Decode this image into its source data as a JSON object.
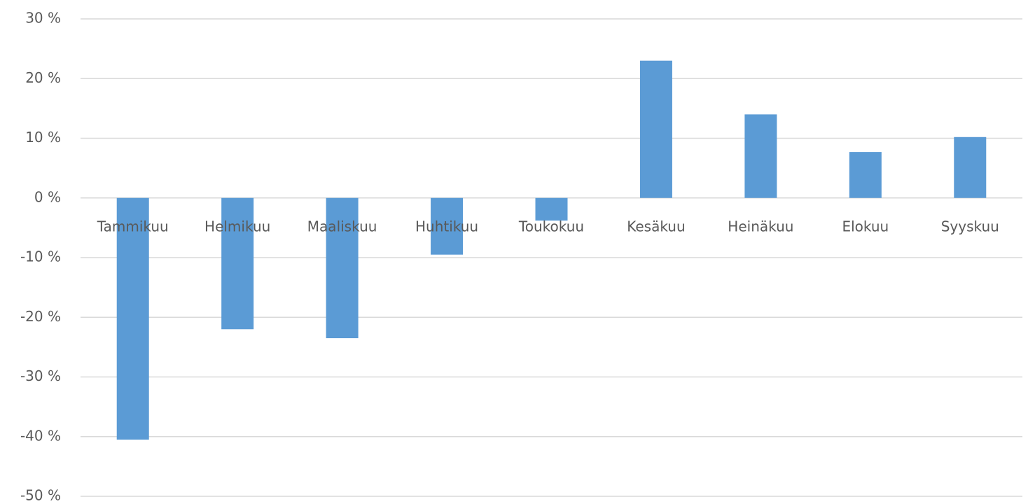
{
  "chart_data": {
    "type": "bar",
    "categories": [
      "Tammikuu",
      "Helmikuu",
      "Maaliskuu",
      "Huhtikuu",
      "Toukokuu",
      "Kesäkuu",
      "Heinäkuu",
      "Elokuu",
      "Syyskuu"
    ],
    "values": [
      -40.5,
      -22,
      -23.5,
      -9.5,
      -3.8,
      23,
      14,
      7.7,
      10.2
    ],
    "color": "#5b9bd5",
    "ylim": [
      -50,
      30
    ],
    "yticks": [
      {
        "value": -50,
        "label": "-50 %"
      },
      {
        "value": -40,
        "label": "-40 %"
      },
      {
        "value": -30,
        "label": "-30 %"
      },
      {
        "value": -20,
        "label": "-20 %"
      },
      {
        "value": -10,
        "label": "-10 %"
      },
      {
        "value": 0,
        "label": "0 %"
      },
      {
        "value": 10,
        "label": "10 %"
      },
      {
        "value": 20,
        "label": "20 %"
      },
      {
        "value": 30,
        "label": "30 %"
      }
    ],
    "grid": true
  }
}
